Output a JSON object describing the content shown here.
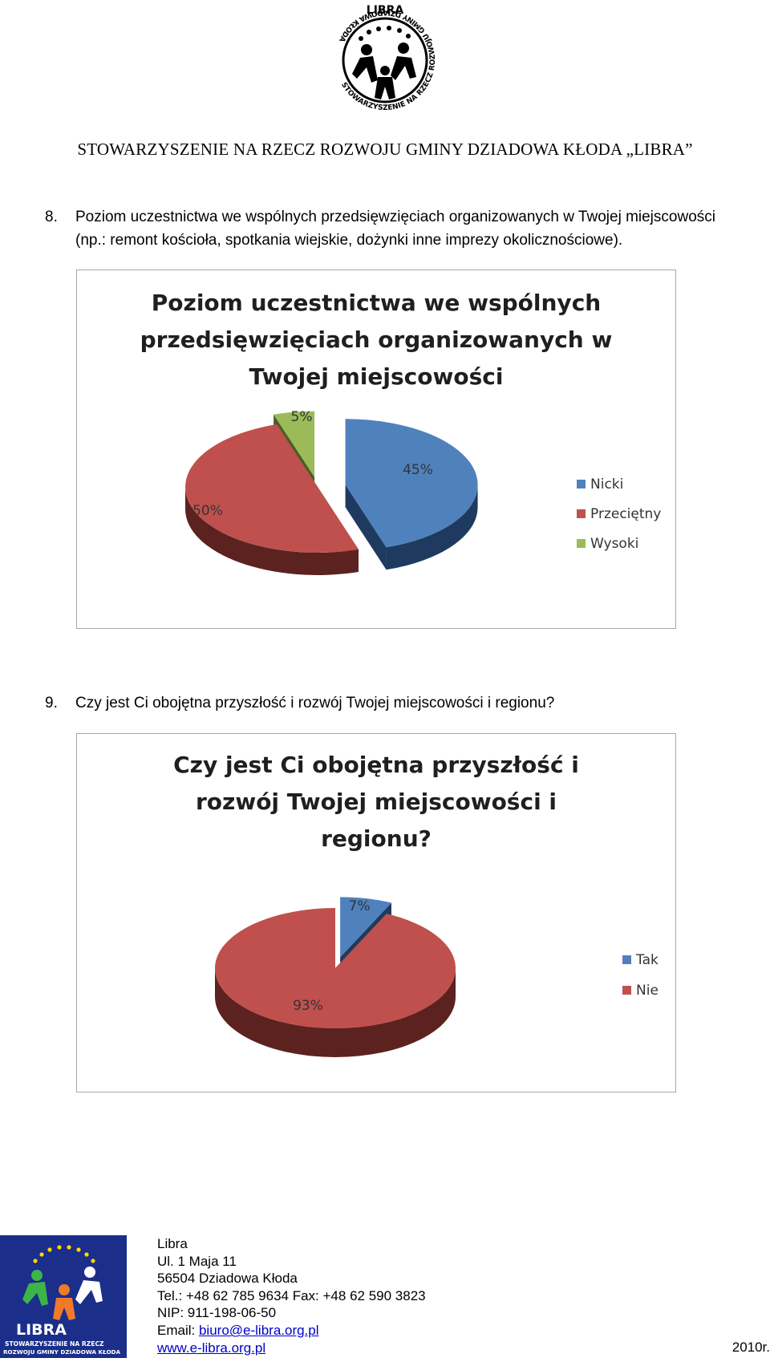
{
  "header": {
    "logo_text_top": "LIBRA",
    "logo_ring_text": "STOWARZYSZENIE NA RZECZ ROZWOJU GMINY DZIADOWA KŁODA",
    "org_title": "STOWARZYSZENIE NA RZECZ ROZWOJU GMINY DZIADOWA KŁODA „LIBRA”"
  },
  "questions": [
    {
      "number": "8.",
      "line1": "Poziom uczestnictwa we wspólnych przedsięwzięciach organizowanych w Twojej miejscowości",
      "line2": "(np.: remont kościoła, spotkania wiejskie, dożynki inne imprezy okolicznościowe)."
    },
    {
      "number": "9.",
      "line1": "Czy jest Ci obojętna przyszłość i rozwój Twojej miejscowości i regionu?"
    }
  ],
  "chart_data": [
    {
      "type": "pie",
      "title_lines": [
        "Poziom uczestnictwa we wspólnych",
        "przedsięwzięciach organizowanych w",
        "Twojej miejscowości"
      ],
      "categories": [
        "Nicki",
        "Przeciętny",
        "Wysoki"
      ],
      "values": [
        45,
        50,
        5
      ],
      "labels": [
        "45%",
        "50%",
        "5%"
      ],
      "colors": [
        "#4f81bd",
        "#c0504d",
        "#9bbb59"
      ],
      "dark_colors": [
        "#1f3a5f",
        "#5c2220",
        "#4b5e25"
      ],
      "legend_position": "right"
    },
    {
      "type": "pie",
      "title_lines": [
        "Czy jest Ci obojętna przyszłość i",
        "rozwój Twojej miejscowości i",
        "regionu?"
      ],
      "categories": [
        "Tak",
        "Nie"
      ],
      "values": [
        7,
        93
      ],
      "labels": [
        "7%",
        "93%"
      ],
      "colors": [
        "#4f81bd",
        "#c0504d"
      ],
      "dark_colors": [
        "#1f3a5f",
        "#5c2220"
      ],
      "legend_position": "right"
    }
  ],
  "footer": {
    "logo_text": "LIBRA",
    "logo_sub1": "STOWARZYSZENIE NA RZECZ",
    "logo_sub2": "ROZWOJU GMINY DZIADOWA KŁODA",
    "name": "Libra",
    "street": "Ul. 1 Maja 11",
    "city": "56504 Dziadowa Kłoda",
    "phone": "Tel.: +48 62 785 9634 Fax: +48 62 590 3823",
    "nip": "NIP: 911-198-06-50",
    "email_label": "Email: ",
    "email": "biuro@e-libra.org.pl",
    "website": "www.e-libra.org.pl",
    "year": "2010r."
  }
}
